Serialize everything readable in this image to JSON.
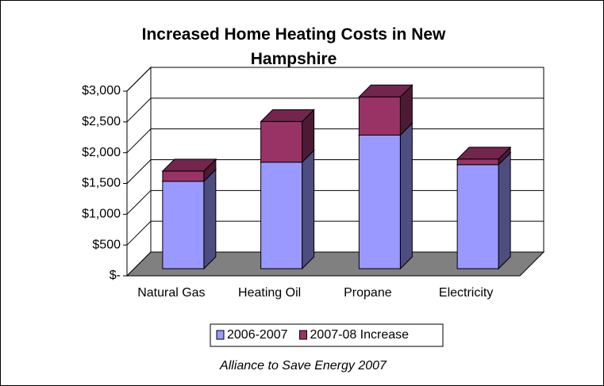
{
  "chart_data": {
    "type": "bar3d_stacked",
    "title": "Increased Home Heating Costs in New Hampshire",
    "categories": [
      "Natural Gas",
      "Heating Oil",
      "Propane",
      "Electricity"
    ],
    "series": [
      {
        "name": "2006-2007",
        "color": "#9999ff",
        "values": [
          1420,
          1730,
          2170,
          1690
        ]
      },
      {
        "name": "2007-08 Increase",
        "color": "#993366",
        "values": [
          165,
          660,
          620,
          90
        ]
      }
    ],
    "ylim": [
      0,
      3000
    ],
    "yticks": [
      {
        "value": 0,
        "label": "$-"
      },
      {
        "value": 500,
        "label": "$500"
      },
      {
        "value": 1000,
        "label": "$1,000"
      },
      {
        "value": 1500,
        "label": "$1,500"
      },
      {
        "value": 2000,
        "label": "$2,000"
      },
      {
        "value": 2500,
        "label": "$2,500"
      },
      {
        "value": 3000,
        "label": "$3,000"
      }
    ],
    "grid": true,
    "legend": "bottom",
    "source": "Alliance to Save Energy 2007"
  }
}
